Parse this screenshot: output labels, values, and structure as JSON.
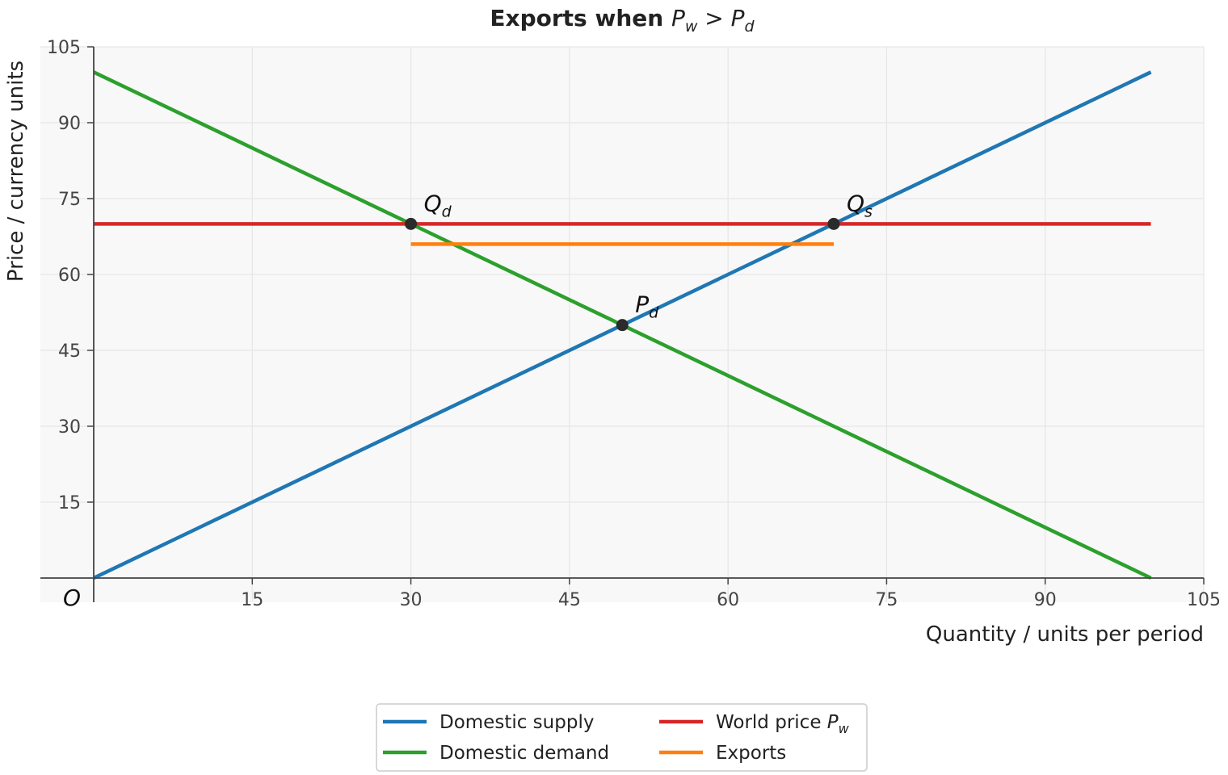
{
  "chart_data": {
    "type": "line",
    "title": {
      "text": "Exports when ",
      "math": "P",
      "sub": "w",
      "op": " > ",
      "math2": "P",
      "sub2": "d"
    },
    "xlabel": "Quantity / units per period",
    "ylabel": "Price / currency units",
    "origin_label": "O",
    "xlim": [
      0,
      105
    ],
    "ylim": [
      0,
      105
    ],
    "xticks": [
      15,
      30,
      45,
      60,
      75,
      90,
      105
    ],
    "yticks": [
      15,
      30,
      45,
      60,
      75,
      90,
      105
    ],
    "grid": true,
    "series": [
      {
        "name": "Domestic supply",
        "color": "#1f77b4",
        "x": [
          0,
          100
        ],
        "y": [
          0,
          100
        ]
      },
      {
        "name": "Domestic demand",
        "color": "#2ca02c",
        "x": [
          0,
          100
        ],
        "y": [
          100,
          0
        ]
      },
      {
        "name": "World price",
        "name_math": "P",
        "name_sub": "w",
        "color": "#d62728",
        "x": [
          0,
          100
        ],
        "y": [
          70,
          70
        ]
      },
      {
        "name": "Exports",
        "color": "#ff7f0e",
        "x": [
          30,
          70
        ],
        "y": [
          66,
          66
        ]
      }
    ],
    "points": [
      {
        "label": "Q",
        "sub": "d",
        "x": 30,
        "y": 70
      },
      {
        "label": "Q",
        "sub": "s",
        "x": 70,
        "y": 70
      },
      {
        "label": "P",
        "sub": "d",
        "x": 50,
        "y": 50
      }
    ],
    "legend": {
      "position": "bottom-center",
      "columns": 2
    }
  }
}
